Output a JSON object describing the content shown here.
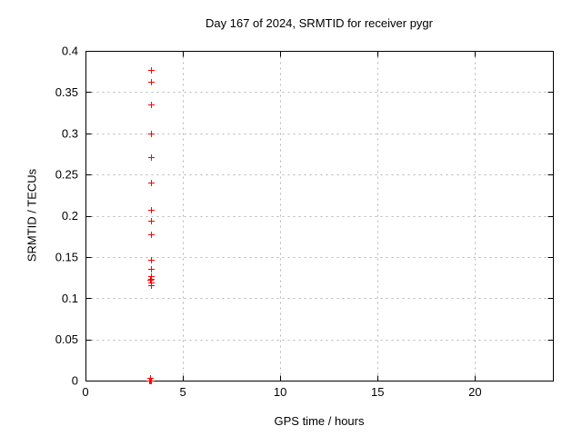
{
  "figure": {
    "background": "#ffffff",
    "text_color": "#000000"
  },
  "chart_data": {
    "type": "scatter",
    "title": "Day 167 of 2024, SRMTID for receiver pygr",
    "xlabel": "GPS time / hours",
    "ylabel": "SRMTID / TECUs",
    "xlim": [
      0,
      24
    ],
    "ylim": [
      0,
      0.4
    ],
    "grid": true,
    "legend": "none",
    "border_color": "#000000",
    "grid_color": "#b4b4b4",
    "xticks": [
      {
        "v": 0,
        "label": "0"
      },
      {
        "v": 5,
        "label": "5"
      },
      {
        "v": 10,
        "label": "10"
      },
      {
        "v": 15,
        "label": "15"
      },
      {
        "v": 20,
        "label": "20"
      }
    ],
    "yticks": [
      {
        "v": 0,
        "label": "0"
      },
      {
        "v": 0.05,
        "label": "0.05"
      },
      {
        "v": 0.1,
        "label": "0.1"
      },
      {
        "v": 0.15,
        "label": "0.15"
      },
      {
        "v": 0.2,
        "label": "0.2"
      },
      {
        "v": 0.25,
        "label": "0.25"
      },
      {
        "v": 0.3,
        "label": "0.3"
      },
      {
        "v": 0.35,
        "label": "0.35"
      },
      {
        "v": 0.4,
        "label": "0.4"
      }
    ],
    "series": [
      {
        "name": "SRMTID",
        "marker": {
          "shape": "plus",
          "color": "#ff0000",
          "size": 7
        },
        "points": [
          [
            3.35,
            0.377
          ],
          [
            3.35,
            0.363
          ],
          [
            3.35,
            0.335
          ],
          [
            3.35,
            0.3
          ],
          [
            3.35,
            0.271
          ],
          [
            3.35,
            0.24
          ],
          [
            3.35,
            0.207
          ],
          [
            3.35,
            0.194
          ],
          [
            3.35,
            0.177
          ],
          [
            3.35,
            0.147
          ],
          [
            3.35,
            0.136
          ],
          [
            3.34,
            0.127
          ],
          [
            3.36,
            0.123
          ],
          [
            3.33,
            0.122
          ],
          [
            3.35,
            0.119
          ],
          [
            3.34,
            0.116
          ],
          [
            3.27,
            0.0
          ],
          [
            3.31,
            0.0
          ],
          [
            3.35,
            0.0
          ],
          [
            3.31,
            0.003
          ]
        ]
      }
    ]
  }
}
